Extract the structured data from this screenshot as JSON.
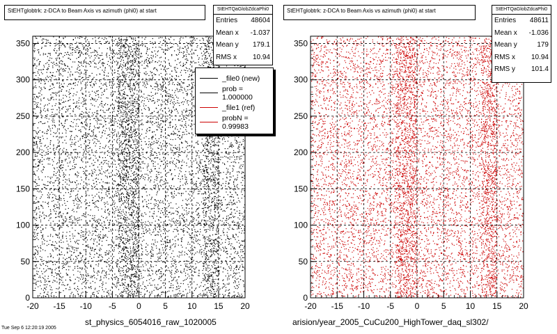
{
  "chart_data": [
    {
      "type": "scatter",
      "title": "StEHTglobtrk: z-DCA to Beam Axis vs azimuth (phi0) at start",
      "stats": {
        "name": "StEHTQaGlobZdcaPhi0",
        "rows": [
          {
            "label": "Entries",
            "value": "48604"
          },
          {
            "label": "Mean x",
            "value": "-1.037"
          },
          {
            "label": "Mean y",
            "value": "179.1"
          },
          {
            "label": "RMS x",
            "value": "10.94"
          }
        ]
      },
      "legend": {
        "placement": "top-right",
        "entries": [
          {
            "label": "_file0 (new)",
            "color": "#000000"
          },
          {
            "label": "prob = 1.000000",
            "color": "#000000"
          },
          {
            "label": "_file1 (ref)",
            "color": "#cc0000"
          },
          {
            "label": "probN = 0.99983",
            "color": "#cc0000"
          }
        ]
      },
      "xlim": [
        -20,
        20
      ],
      "ylim": [
        0,
        360
      ],
      "xticks": [
        "-20",
        "-15",
        "-10",
        "-5",
        "0",
        "5",
        "10",
        "15",
        "20"
      ],
      "yticks": [
        "0",
        "50",
        "100",
        "150",
        "200",
        "250",
        "300",
        "350"
      ],
      "grid": true,
      "marker_color": "#000000",
      "footer": "st_physics_6054016_raw_1020005"
    },
    {
      "type": "scatter",
      "title": "StEHTglobtrk: z-DCA to Beam Axis vs azimuth (phi0) at start",
      "stats": {
        "name": "StEHTQaGlobZdcaPhi0",
        "rows": [
          {
            "label": "Entries",
            "value": "48611"
          },
          {
            "label": "Mean x",
            "value": "-1.036"
          },
          {
            "label": "Mean y",
            "value": "179"
          },
          {
            "label": "RMS x",
            "value": "10.94"
          },
          {
            "label": "RMS y",
            "value": "101.4"
          }
        ]
      },
      "xlim": [
        -20,
        20
      ],
      "ylim": [
        0,
        360
      ],
      "xticks": [
        "-20",
        "-15",
        "-10",
        "-5",
        "0",
        "5",
        "10",
        "15",
        "20"
      ],
      "yticks": [
        "0",
        "50",
        "100",
        "150",
        "200",
        "250",
        "300",
        "350"
      ],
      "grid": true,
      "marker_color": "#cc0000",
      "footer": "arision/year_2005_CuCu200_HighTower_daq_sl302/"
    }
  ],
  "corner_text": "Tue Sep  6 12:20:19 2005"
}
